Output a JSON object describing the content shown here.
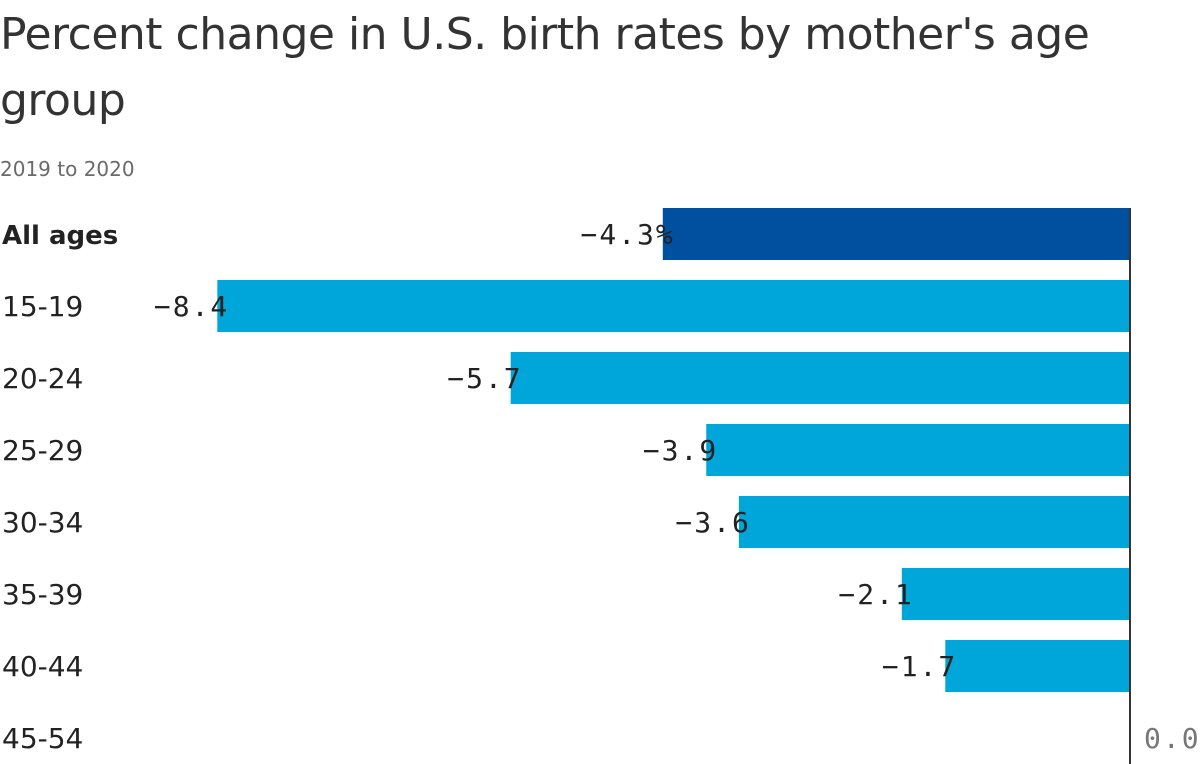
{
  "chart_data": {
    "type": "bar",
    "orientation": "horizontal",
    "title": "Percent change in U.S. birth rates by mother's age group",
    "subtitle": "2019 to 2020",
    "categories": [
      "All ages",
      "15-19",
      "20-24",
      "25-29",
      "30-34",
      "35-39",
      "40-44",
      "45-54"
    ],
    "values": [
      -4.3,
      -8.4,
      -5.7,
      -3.9,
      -3.6,
      -2.1,
      -1.7,
      0.0
    ],
    "value_labels": [
      "−4.3%",
      "−8.4",
      "−5.7",
      "−3.9",
      "−3.6",
      "−2.1",
      "−1.7",
      ""
    ],
    "xlim": [
      -10.4,
      0
    ],
    "axis_tick_label": "0.0",
    "grid": false,
    "highlight_index": 0,
    "colors": {
      "highlight": "#0050a0",
      "bar": "#00a5d9",
      "axis": "#333333",
      "text": "#333333"
    }
  }
}
